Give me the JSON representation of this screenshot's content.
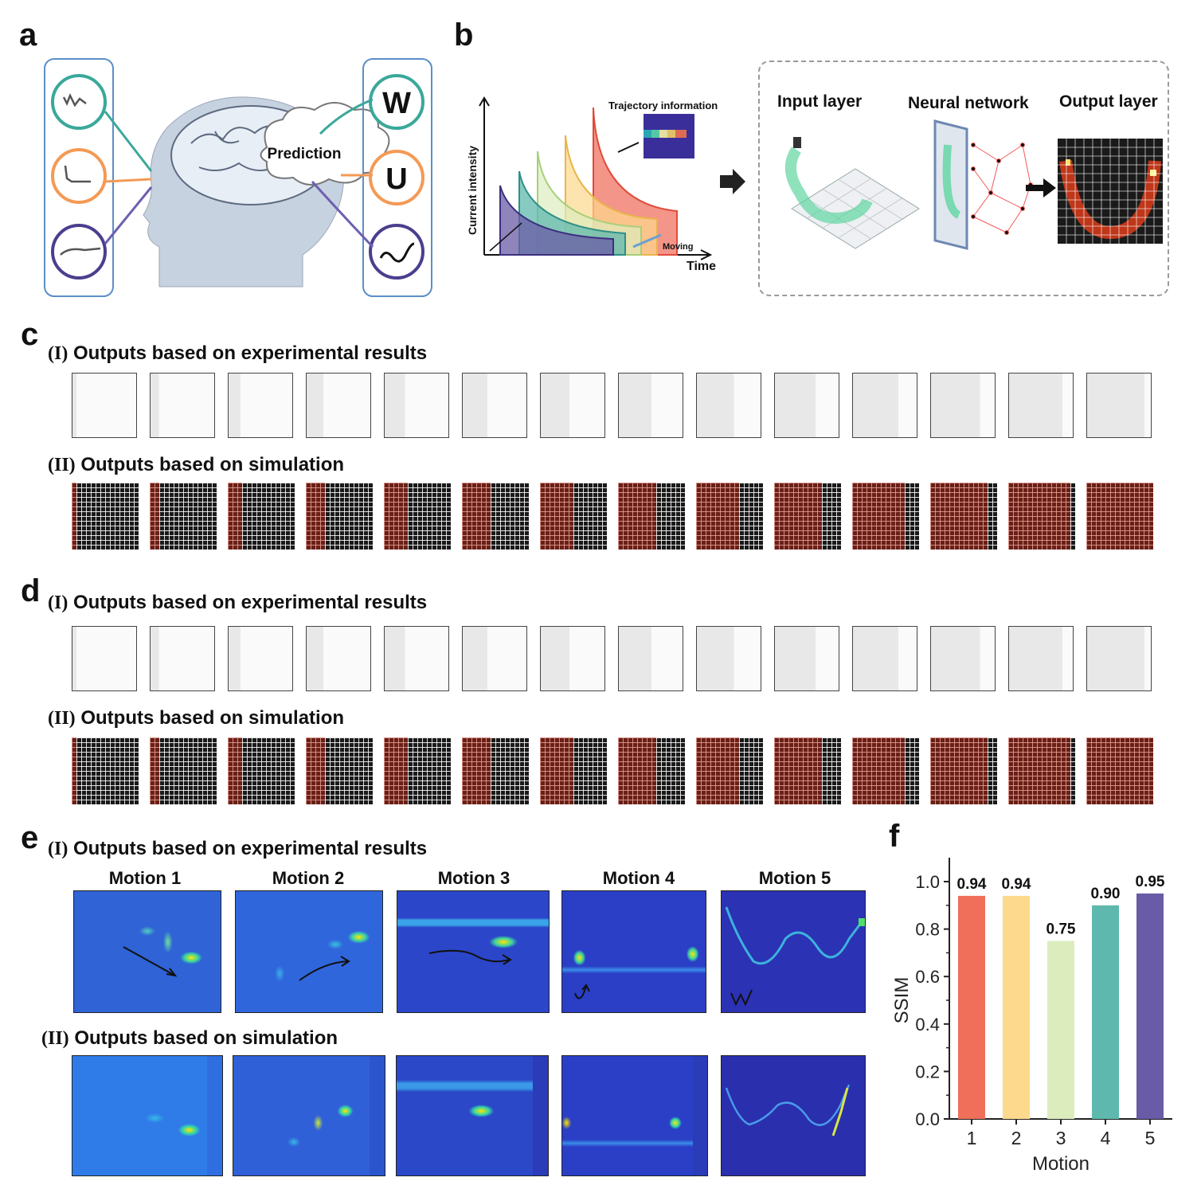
{
  "panels": {
    "a": "a",
    "b": "b",
    "c": "c",
    "d": "d",
    "e": "e",
    "f": "f"
  },
  "panel_a": {
    "prediction_label": "Prediction",
    "letters": [
      "W",
      "U"
    ]
  },
  "panel_b": {
    "y_axis_label": "Current intensity",
    "x_axis_label": "Time",
    "moving_label": "Moving",
    "trajectory_label": "Trajectory information",
    "input_layer": "Input layer",
    "neural_network": "Neural network",
    "output_layer": "Output layer"
  },
  "panel_c": {
    "row1_roman": "(I)",
    "row1_title": "Outputs based on experimental results",
    "row2_roman": "(II)",
    "row2_title": "Outputs based on simulation"
  },
  "panel_d": {
    "row1_roman": "(I)",
    "row1_title": "Outputs based on experimental results",
    "row2_roman": "(II)",
    "row2_title": "Outputs based on simulation"
  },
  "panel_e": {
    "row1_roman": "(I)",
    "row1_title": "Outputs based on experimental results",
    "row2_roman": "(II)",
    "row2_title": "Outputs based on simulation",
    "motions": [
      "Motion 1",
      "Motion 2",
      "Motion 3",
      "Motion 4",
      "Motion 5"
    ]
  },
  "chart_data": {
    "type": "bar",
    "categories": [
      "1",
      "2",
      "3",
      "4",
      "5"
    ],
    "values": [
      0.94,
      0.94,
      0.75,
      0.9,
      0.95
    ],
    "value_labels": [
      "0.94",
      "0.94",
      "0.75",
      "0.90",
      "0.95"
    ],
    "colors": [
      "#ef6f5a",
      "#fcd98c",
      "#dcecbd",
      "#5fb8ad",
      "#6a5ba6"
    ],
    "xlabel": "Motion",
    "ylabel": "SSIM",
    "ylim": [
      0.0,
      1.0
    ],
    "yticks": [
      "0.0",
      "0.2",
      "0.4",
      "0.6",
      "0.8",
      "1.0"
    ],
    "grid": false
  }
}
